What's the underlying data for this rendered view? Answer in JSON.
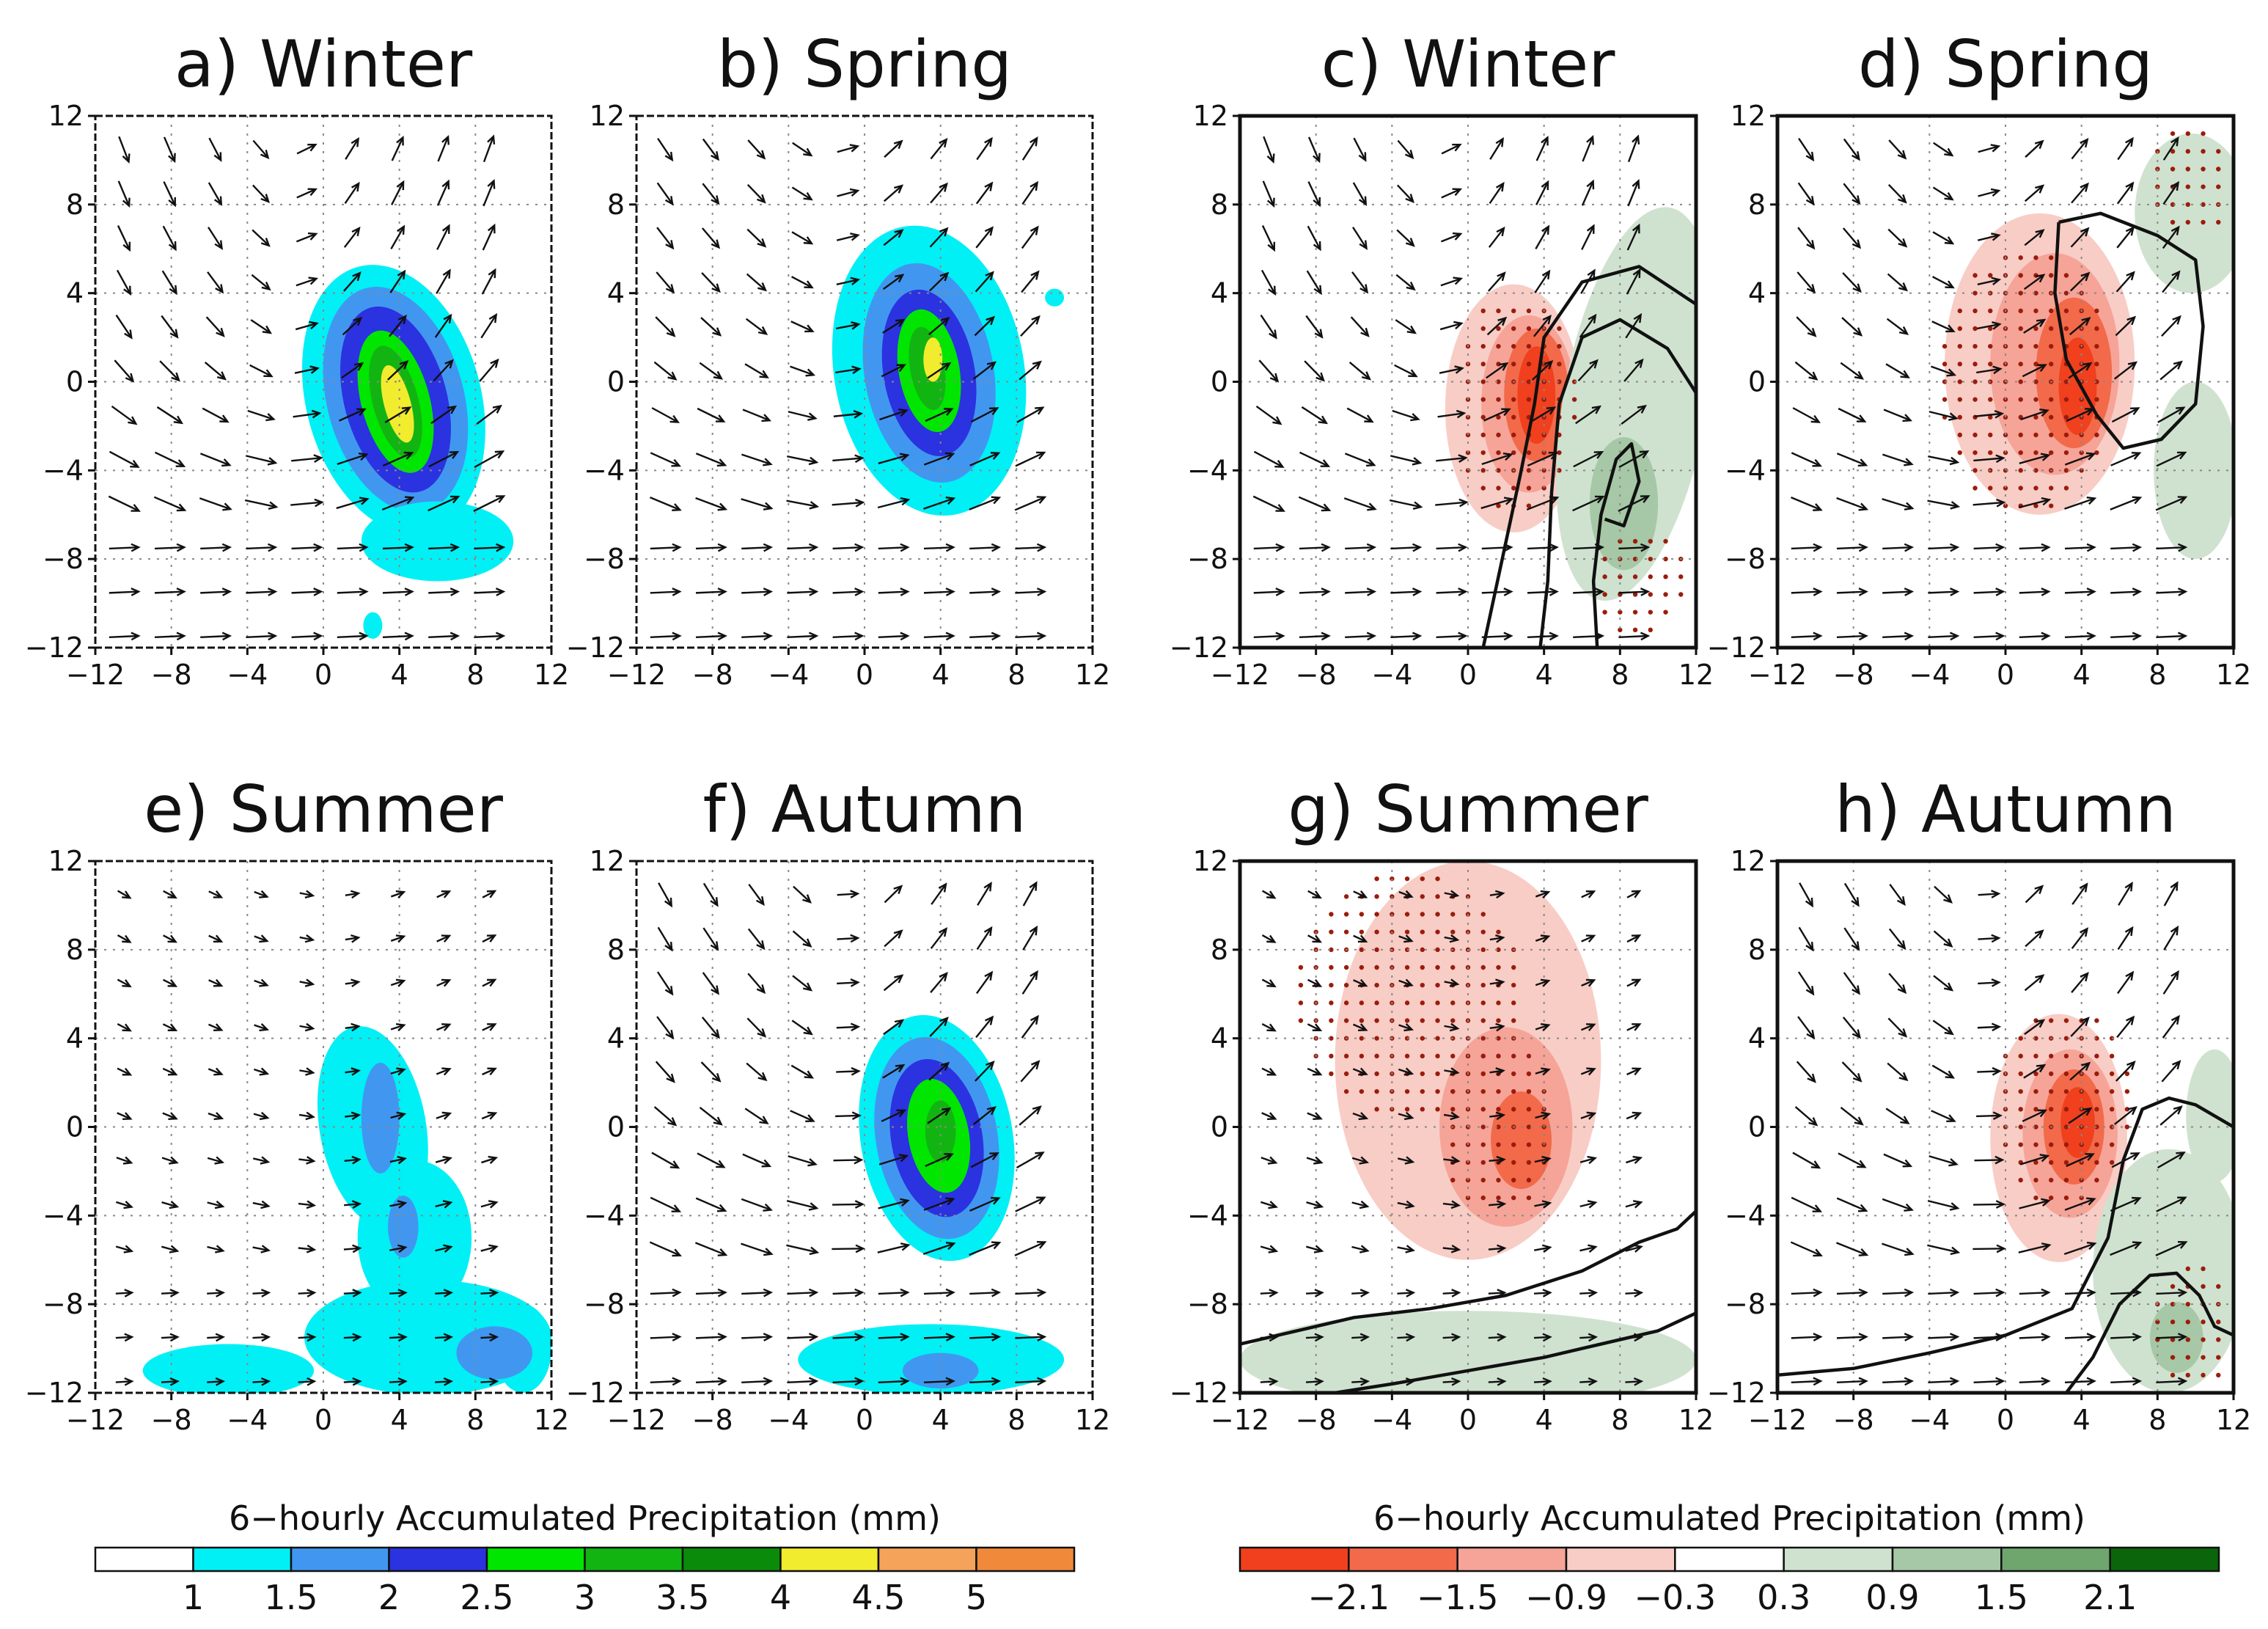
{
  "chart_data": [
    {
      "type": "heatmap",
      "title": "a) Winter",
      "xlim": [
        -12,
        12
      ],
      "ylim": [
        -12,
        12
      ],
      "xticks": [
        "−12",
        "−8",
        "−4",
        "0",
        "4",
        "8",
        "12"
      ],
      "yticks": [
        "12",
        "8",
        "4",
        "0",
        "−4",
        "−8",
        "−12"
      ],
      "kind": "precip",
      "colorbar": "precip",
      "blobs": [
        {
          "cx": 3.7,
          "cy": -0.8,
          "rx": 4.6,
          "ry": 6.2,
          "rot": -15,
          "level": 1
        },
        {
          "cx": 3.8,
          "cy": -0.8,
          "rx": 3.6,
          "ry": 5.2,
          "rot": -15,
          "level": 2
        },
        {
          "cx": 3.8,
          "cy": -0.8,
          "rx": 2.7,
          "ry": 4.3,
          "rot": -15,
          "level": 3
        },
        {
          "cx": 3.8,
          "cy": -0.9,
          "rx": 1.8,
          "ry": 3.3,
          "rot": -15,
          "level": 4
        },
        {
          "cx": 3.8,
          "cy": -0.9,
          "rx": 1.2,
          "ry": 2.6,
          "rot": -15,
          "level": 5
        },
        {
          "cx": 3.9,
          "cy": -1.0,
          "rx": 0.7,
          "ry": 1.8,
          "rot": -15,
          "level": 7
        },
        {
          "cx": 6.0,
          "cy": -7.2,
          "rx": 4.0,
          "ry": 1.8,
          "rot": 0,
          "level": 1
        },
        {
          "cx": 2.6,
          "cy": -11.0,
          "rx": 0.5,
          "ry": 0.6,
          "rot": 0,
          "level": 1
        }
      ],
      "vectors": {
        "cx": -1.5,
        "cy": -1.5,
        "vort": 0.9,
        "u0": 1.0,
        "amp": 1.0
      }
    },
    {
      "type": "heatmap",
      "title": "b) Spring",
      "xlim": [
        -12,
        12
      ],
      "ylim": [
        -12,
        12
      ],
      "xticks": [
        "−12",
        "−8",
        "−4",
        "0",
        "4",
        "8",
        "12"
      ],
      "yticks": [
        "12",
        "8",
        "4",
        "0",
        "−4",
        "−8",
        "−12"
      ],
      "kind": "precip",
      "colorbar": "precip",
      "blobs": [
        {
          "cx": 3.4,
          "cy": 0.5,
          "rx": 5.0,
          "ry": 6.6,
          "rot": -10,
          "level": 1
        },
        {
          "cx": 3.4,
          "cy": 0.4,
          "rx": 3.4,
          "ry": 5.0,
          "rot": -10,
          "level": 2
        },
        {
          "cx": 3.4,
          "cy": 0.4,
          "rx": 2.4,
          "ry": 3.8,
          "rot": -10,
          "level": 3
        },
        {
          "cx": 3.4,
          "cy": 0.5,
          "rx": 1.6,
          "ry": 2.8,
          "rot": -10,
          "level": 4
        },
        {
          "cx": 3.3,
          "cy": 0.6,
          "rx": 0.9,
          "ry": 1.9,
          "rot": -10,
          "level": 5
        },
        {
          "cx": 3.6,
          "cy": 1.0,
          "rx": 0.5,
          "ry": 1.0,
          "rot": 0,
          "level": 7
        },
        {
          "cx": 10.0,
          "cy": 3.8,
          "rx": 0.5,
          "ry": 0.4,
          "rot": 0,
          "level": 1
        }
      ],
      "vectors": {
        "cx": -1.5,
        "cy": -1.0,
        "vort": 0.75,
        "u0": 1.0,
        "amp": 1.0
      }
    },
    {
      "type": "heatmap",
      "title": "c) Winter",
      "xlim": [
        -12,
        12
      ],
      "ylim": [
        -12,
        12
      ],
      "xticks": [
        "−12",
        "−8",
        "−4",
        "0",
        "4",
        "8",
        "12"
      ],
      "yticks": [
        "12",
        "8",
        "4",
        "0",
        "−4",
        "−8",
        "−12"
      ],
      "kind": "anomaly",
      "colorbar": "anomaly",
      "blobs": [
        {
          "cx": 2.4,
          "cy": -1.2,
          "rx": 3.6,
          "ry": 5.6,
          "rot": 0,
          "level": 3
        },
        {
          "cx": 3.2,
          "cy": -1.0,
          "rx": 2.5,
          "ry": 4.0,
          "rot": 0,
          "level": 2
        },
        {
          "cx": 3.6,
          "cy": -0.6,
          "rx": 1.7,
          "ry": 3.0,
          "rot": 0,
          "level": 1
        },
        {
          "cx": 3.6,
          "cy": -0.6,
          "rx": 1.0,
          "ry": 2.2,
          "rot": 0,
          "level": 0
        },
        {
          "cx": 8.8,
          "cy": -1.0,
          "rx": 3.8,
          "ry": 9.0,
          "rot": 10,
          "level": 5
        },
        {
          "cx": 8.2,
          "cy": -5.5,
          "rx": 1.8,
          "ry": 3.0,
          "rot": 0,
          "level": 6
        }
      ],
      "stipple": [
        {
          "cx": 2.5,
          "cy": -1.0,
          "rx": 3.2,
          "ry": 5.0
        },
        {
          "cx": 9.0,
          "cy": -9.0,
          "rx": 2.5,
          "ry": 2.5
        }
      ],
      "contours": [
        [
          [
            0.8,
            -12
          ],
          [
            1.8,
            -8
          ],
          [
            2.8,
            -4
          ],
          [
            3.5,
            -1
          ],
          [
            4.0,
            2.0
          ],
          [
            6.0,
            4.5
          ],
          [
            9.0,
            5.2
          ],
          [
            12,
            3.5
          ]
        ],
        [
          [
            3.8,
            -12
          ],
          [
            4.2,
            -9
          ],
          [
            4.4,
            -5
          ],
          [
            4.8,
            -1
          ],
          [
            6.0,
            2.0
          ],
          [
            8.0,
            2.8
          ],
          [
            10.5,
            1.5
          ],
          [
            12,
            -0.5
          ]
        ],
        [
          [
            6.8,
            -12
          ],
          [
            6.6,
            -9
          ],
          [
            7.0,
            -6
          ],
          [
            7.8,
            -3.5
          ],
          [
            8.6,
            -2.8
          ],
          [
            9.0,
            -4.5
          ],
          [
            8.2,
            -6.5
          ],
          [
            7.2,
            -6.2
          ]
        ]
      ],
      "vectors": {
        "cx": -1.5,
        "cy": -1.5,
        "vort": 0.9,
        "u0": 1.0,
        "amp": 1.0
      }
    },
    {
      "type": "heatmap",
      "title": "d) Spring",
      "xlim": [
        -12,
        12
      ],
      "ylim": [
        -12,
        12
      ],
      "xticks": [
        "−12",
        "−8",
        "−4",
        "0",
        "4",
        "8",
        "12"
      ],
      "yticks": [
        "12",
        "8",
        "4",
        "0",
        "−4",
        "−8",
        "−12"
      ],
      "kind": "anomaly",
      "colorbar": "anomaly",
      "blobs": [
        {
          "cx": 1.8,
          "cy": 0.8,
          "rx": 5.0,
          "ry": 6.8,
          "rot": 0,
          "level": 3
        },
        {
          "cx": 2.6,
          "cy": 0.8,
          "rx": 3.4,
          "ry": 5.0,
          "rot": 0,
          "level": 2
        },
        {
          "cx": 3.6,
          "cy": 0.4,
          "rx": 2.0,
          "ry": 3.4,
          "rot": 0,
          "level": 1
        },
        {
          "cx": 3.8,
          "cy": -0.2,
          "rx": 1.0,
          "ry": 2.2,
          "rot": 0,
          "level": 0
        },
        {
          "cx": 9.8,
          "cy": 7.6,
          "rx": 3.0,
          "ry": 3.6,
          "rot": 0,
          "level": 5
        },
        {
          "cx": 10.0,
          "cy": -4.0,
          "rx": 2.2,
          "ry": 4.0,
          "rot": 0,
          "level": 5
        }
      ],
      "stipple": [
        {
          "cx": 1.0,
          "cy": 0.0,
          "rx": 4.5,
          "ry": 6.0
        },
        {
          "cx": 9.8,
          "cy": 9.0,
          "rx": 2.4,
          "ry": 2.5
        }
      ],
      "contours": [
        [
          [
            2.8,
            7.2
          ],
          [
            2.6,
            4.0
          ],
          [
            3.2,
            1.0
          ],
          [
            4.8,
            -1.5
          ],
          [
            6.2,
            -3.0
          ],
          [
            8.2,
            -2.6
          ],
          [
            10.0,
            -1.0
          ],
          [
            10.4,
            2.5
          ],
          [
            10.0,
            5.5
          ],
          [
            8.0,
            6.6
          ],
          [
            5.0,
            7.6
          ],
          [
            2.8,
            7.2
          ]
        ]
      ],
      "vectors": {
        "cx": -1.5,
        "cy": -1.0,
        "vort": 0.75,
        "u0": 1.0,
        "amp": 1.0
      }
    },
    {
      "type": "heatmap",
      "title": "e) Summer",
      "xlim": [
        -12,
        12
      ],
      "ylim": [
        -12,
        12
      ],
      "xticks": [
        "−12",
        "−8",
        "−4",
        "0",
        "4",
        "8",
        "12"
      ],
      "yticks": [
        "12",
        "8",
        "4",
        "0",
        "−4",
        "−8",
        "−12"
      ],
      "kind": "precip",
      "colorbar": "precip",
      "blobs": [
        {
          "cx": 2.6,
          "cy": 0.0,
          "rx": 2.8,
          "ry": 4.6,
          "rot": -10,
          "level": 1
        },
        {
          "cx": 4.8,
          "cy": -5.0,
          "rx": 3.0,
          "ry": 3.5,
          "rot": 0,
          "level": 1
        },
        {
          "cx": 5.5,
          "cy": -9.5,
          "rx": 6.5,
          "ry": 2.6,
          "rot": 0,
          "level": 1
        },
        {
          "cx": -5.0,
          "cy": -11.0,
          "rx": 4.5,
          "ry": 1.2,
          "rot": 0,
          "level": 1
        },
        {
          "cx": 10.5,
          "cy": -10.0,
          "rx": 1.5,
          "ry": 2.0,
          "rot": 0,
          "level": 1
        },
        {
          "cx": 3.0,
          "cy": 0.4,
          "rx": 1.0,
          "ry": 2.5,
          "rot": 0,
          "level": 2
        },
        {
          "cx": 4.2,
          "cy": -4.5,
          "rx": 0.8,
          "ry": 1.4,
          "rot": 0,
          "level": 2
        },
        {
          "cx": 9.0,
          "cy": -10.2,
          "rx": 2.0,
          "ry": 1.2,
          "rot": 0,
          "level": 2
        }
      ],
      "vectors": {
        "cx": 0.5,
        "cy": -1.0,
        "vort": 0.35,
        "u0": 0.8,
        "amp": 0.6
      }
    },
    {
      "type": "heatmap",
      "title": "f) Autumn",
      "xlim": [
        -12,
        12
      ],
      "ylim": [
        -12,
        12
      ],
      "xticks": [
        "−12",
        "−8",
        "−4",
        "0",
        "4",
        "8",
        "12"
      ],
      "yticks": [
        "12",
        "8",
        "4",
        "0",
        "−4",
        "−8",
        "−12"
      ],
      "kind": "precip",
      "colorbar": "precip",
      "blobs": [
        {
          "cx": 3.8,
          "cy": -0.5,
          "rx": 4.0,
          "ry": 5.6,
          "rot": -10,
          "level": 1
        },
        {
          "cx": 3.8,
          "cy": -0.5,
          "rx": 3.2,
          "ry": 4.6,
          "rot": -10,
          "level": 2
        },
        {
          "cx": 3.8,
          "cy": -0.5,
          "rx": 2.4,
          "ry": 3.6,
          "rot": -10,
          "level": 3
        },
        {
          "cx": 3.9,
          "cy": -0.4,
          "rx": 1.6,
          "ry": 2.6,
          "rot": -10,
          "level": 4
        },
        {
          "cx": 4.0,
          "cy": -0.2,
          "rx": 0.8,
          "ry": 1.4,
          "rot": 0,
          "level": 5
        },
        {
          "cx": 3.5,
          "cy": -10.5,
          "rx": 7.0,
          "ry": 1.6,
          "rot": 0,
          "level": 1
        },
        {
          "cx": 4.0,
          "cy": -11.0,
          "rx": 2.0,
          "ry": 0.8,
          "rot": 0,
          "level": 2
        }
      ],
      "vectors": {
        "cx": -1.0,
        "cy": -0.8,
        "vort": 0.8,
        "u0": 1.0,
        "amp": 1.0
      }
    },
    {
      "type": "heatmap",
      "title": "g) Summer",
      "xlim": [
        -12,
        12
      ],
      "ylim": [
        -12,
        12
      ],
      "xticks": [
        "−12",
        "−8",
        "−4",
        "0",
        "4",
        "8",
        "12"
      ],
      "yticks": [
        "12",
        "8",
        "4",
        "0",
        "−4",
        "−8",
        "−12"
      ],
      "kind": "anomaly",
      "colorbar": "anomaly",
      "blobs": [
        {
          "cx": 0.0,
          "cy": 3.0,
          "rx": 7.0,
          "ry": 9.0,
          "rot": 0,
          "level": 3
        },
        {
          "cx": 2.0,
          "cy": 0.0,
          "rx": 3.5,
          "ry": 4.5,
          "rot": 0,
          "level": 2
        },
        {
          "cx": 2.8,
          "cy": -0.6,
          "rx": 1.6,
          "ry": 2.2,
          "rot": 0,
          "level": 1
        },
        {
          "cx": 0.0,
          "cy": -10.5,
          "rx": 12.0,
          "ry": 2.2,
          "rot": 0,
          "level": 5
        }
      ],
      "stipple": [
        {
          "cx": -3.0,
          "cy": 6.0,
          "rx": 6.0,
          "ry": 5.5
        },
        {
          "cx": 1.5,
          "cy": 0.0,
          "rx": 3.0,
          "ry": 4.0
        }
      ],
      "contours": [
        [
          [
            -12,
            -9.8
          ],
          [
            -9,
            -9.2
          ],
          [
            -6,
            -8.6
          ],
          [
            -2,
            -8.2
          ],
          [
            2,
            -7.6
          ],
          [
            6,
            -6.5
          ],
          [
            9,
            -5.2
          ],
          [
            11,
            -4.6
          ],
          [
            12,
            -3.8
          ]
        ],
        [
          [
            -7,
            -12
          ],
          [
            -4,
            -11.6
          ],
          [
            0,
            -11.0
          ],
          [
            4,
            -10.4
          ],
          [
            7,
            -9.8
          ],
          [
            10,
            -9.2
          ],
          [
            12,
            -8.4
          ]
        ]
      ],
      "vectors": {
        "cx": 0.5,
        "cy": -1.0,
        "vort": 0.35,
        "u0": 0.8,
        "amp": 0.6
      }
    },
    {
      "type": "heatmap",
      "title": "h) Autumn",
      "xlim": [
        -12,
        12
      ],
      "ylim": [
        -12,
        12
      ],
      "xticks": [
        "−12",
        "−8",
        "−4",
        "0",
        "4",
        "8",
        "12"
      ],
      "yticks": [
        "12",
        "8",
        "4",
        "0",
        "−4",
        "−8",
        "−12"
      ],
      "kind": "anomaly",
      "colorbar": "anomaly",
      "blobs": [
        {
          "cx": 2.8,
          "cy": -0.5,
          "rx": 3.6,
          "ry": 5.6,
          "rot": 0,
          "level": 3
        },
        {
          "cx": 3.4,
          "cy": -0.3,
          "rx": 2.5,
          "ry": 3.8,
          "rot": 0,
          "level": 2
        },
        {
          "cx": 3.6,
          "cy": 0.0,
          "rx": 1.6,
          "ry": 2.6,
          "rot": 0,
          "level": 1
        },
        {
          "cx": 3.8,
          "cy": 0.2,
          "rx": 0.9,
          "ry": 1.6,
          "rot": 0,
          "level": 0
        },
        {
          "cx": 8.6,
          "cy": -6.5,
          "rx": 4.0,
          "ry": 5.5,
          "rot": 0,
          "level": 5
        },
        {
          "cx": 11.0,
          "cy": 0.5,
          "rx": 1.5,
          "ry": 3.0,
          "rot": 0,
          "level": 5
        },
        {
          "cx": 9.0,
          "cy": -9.5,
          "rx": 1.4,
          "ry": 1.6,
          "rot": 0,
          "level": 6
        }
      ],
      "stipple": [
        {
          "cx": 3.0,
          "cy": 1.0,
          "rx": 3.6,
          "ry": 4.6
        },
        {
          "cx": 10.0,
          "cy": -9.0,
          "rx": 2.2,
          "ry": 3.0
        }
      ],
      "contours": [
        [
          [
            -12,
            -11.2
          ],
          [
            -8,
            -10.9
          ],
          [
            -4,
            -10.2
          ],
          [
            0,
            -9.4
          ],
          [
            3.5,
            -8.2
          ],
          [
            5.4,
            -5.0
          ],
          [
            6.2,
            -1.5
          ],
          [
            7.2,
            0.8
          ],
          [
            8.6,
            1.3
          ],
          [
            10.0,
            1.0
          ],
          [
            12,
            0.0
          ]
        ],
        [
          [
            3.2,
            -12
          ],
          [
            4.6,
            -10.4
          ],
          [
            6.0,
            -8.0
          ],
          [
            7.6,
            -6.7
          ],
          [
            9.0,
            -6.6
          ],
          [
            10.2,
            -7.6
          ],
          [
            11.0,
            -9.0
          ],
          [
            12,
            -9.4
          ]
        ]
      ],
      "vectors": {
        "cx": -1.0,
        "cy": -0.8,
        "vort": 0.8,
        "u0": 1.0,
        "amp": 1.0
      }
    }
  ],
  "colorbars": {
    "precip": {
      "title": "6−hourly Accumulated Precipitation (mm)",
      "colors": [
        "#ffffff",
        "#00f0f5",
        "#4197f0",
        "#2b32e0",
        "#00e600",
        "#12b412",
        "#0a8c0a",
        "#f2ec2e",
        "#f5a25a",
        "#f08a3a"
      ],
      "ticks": [
        "1",
        "1.5",
        "2",
        "2.5",
        "3",
        "3.5",
        "4",
        "4.5",
        "5"
      ]
    },
    "anomaly": {
      "title": "6−hourly Accumulated Precipitation (mm)",
      "colors": [
        "#f0401e",
        "#f26a4a",
        "#f6a498",
        "#f8cdc6",
        "#ffffff",
        "#cfe2cf",
        "#a6c8a6",
        "#6ea66e",
        "#0b650b"
      ],
      "ticks": [
        "−2.1",
        "−1.5",
        "−0.9",
        "−0.3",
        "0.3",
        "0.9",
        "1.5",
        "2.1"
      ]
    }
  },
  "colors": {
    "stipple": "#9b1c0c",
    "vector": "#111111",
    "contour": "#111111",
    "grid": "#888888"
  }
}
